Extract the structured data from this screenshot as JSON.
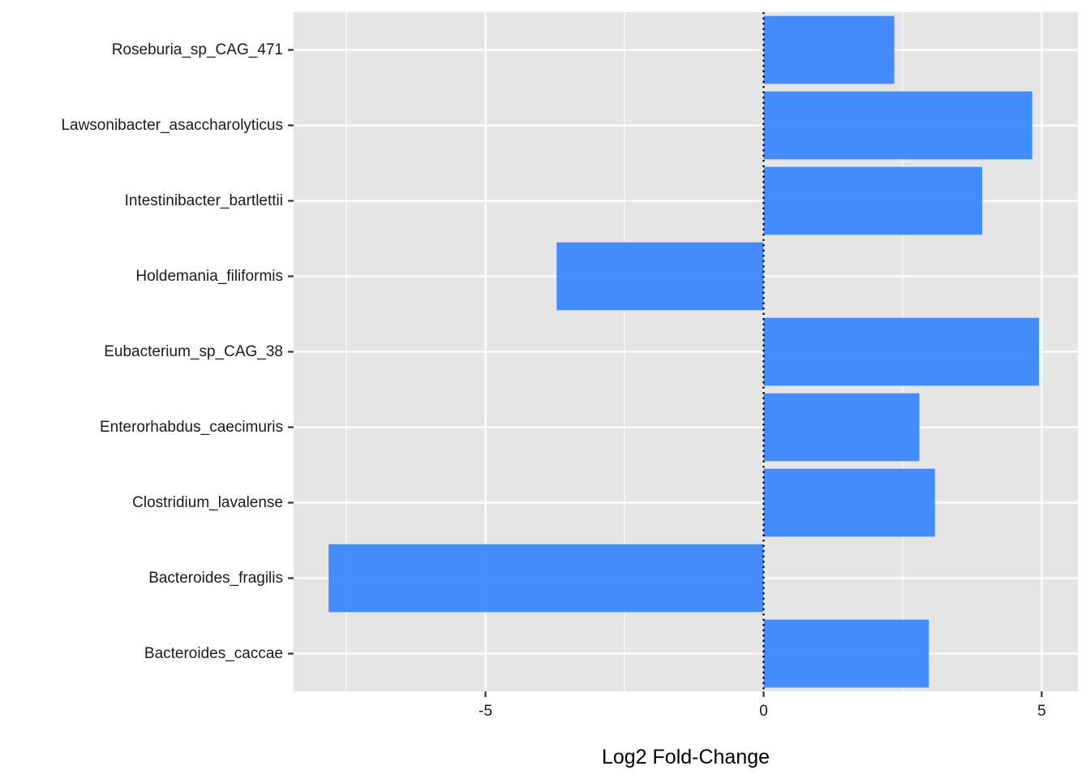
{
  "chart_data": {
    "type": "bar",
    "orientation": "horizontal",
    "categories": [
      "Roseburia_sp_CAG_471",
      "Lawsonibacter_asaccharolyticus",
      "Intestinibacter_bartlettii",
      "Holdemania_filiformis",
      "Eubacterium_sp_CAG_38",
      "Enterorhabdus_caecimuris",
      "Clostridium_lavalense",
      "Bacteroides_fragilis",
      "Bacteroides_caccae"
    ],
    "values": [
      2.35,
      4.83,
      3.93,
      -3.72,
      4.95,
      2.8,
      3.08,
      -7.82,
      2.97
    ],
    "xlabel": "Log2 Fold-Change",
    "ylabel": "",
    "xlim": [
      -8.45,
      5.65
    ],
    "xticks": [
      -5,
      0,
      5
    ],
    "xtick_labels": [
      "-5",
      "0",
      "5"
    ],
    "reference_line": {
      "x": 0,
      "style": "dotted"
    },
    "grid": true,
    "legend": "none",
    "colors": {
      "bar": "#3a87fb",
      "panel": "#e5e5e5",
      "grid": "#ffffff",
      "tick": "#333333",
      "text": "#1a1a1a"
    }
  }
}
